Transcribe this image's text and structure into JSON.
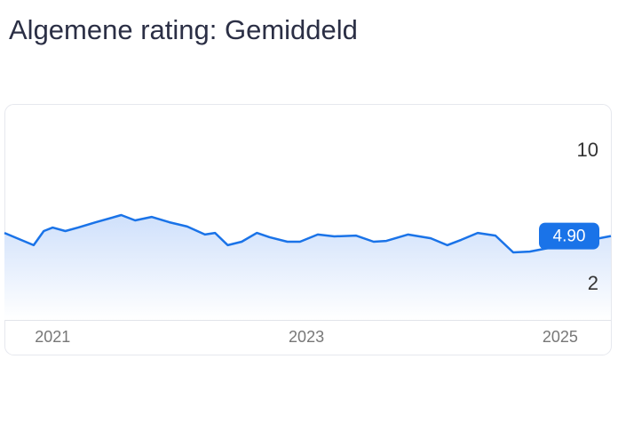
{
  "chart_data": {
    "type": "line",
    "title": "Algemene rating: Gemiddeld",
    "x": [
      2020.62,
      2020.72,
      2020.85,
      2020.93,
      2021.0,
      2021.1,
      2021.2,
      2021.34,
      2021.54,
      2021.65,
      2021.78,
      2021.92,
      2022.06,
      2022.2,
      2022.28,
      2022.38,
      2022.49,
      2022.61,
      2022.71,
      2022.85,
      2022.95,
      2023.09,
      2023.22,
      2023.39,
      2023.53,
      2023.63,
      2023.8,
      2023.98,
      2024.11,
      2024.22,
      2024.35,
      2024.49,
      2024.63,
      2024.76,
      2025.4
    ],
    "values": [
      5.09,
      4.77,
      4.35,
      5.2,
      5.41,
      5.2,
      5.41,
      5.73,
      6.16,
      5.84,
      6.05,
      5.73,
      5.47,
      4.99,
      5.09,
      4.35,
      4.56,
      5.09,
      4.83,
      4.56,
      4.56,
      4.99,
      4.88,
      4.93,
      4.56,
      4.61,
      4.99,
      4.77,
      4.35,
      4.67,
      5.09,
      4.93,
      3.92,
      3.97,
      4.9
    ],
    "color": "#1a73e8",
    "annotation": {
      "value": 4.9,
      "label": "4.90"
    },
    "xlim": [
      2020.62,
      2025.4
    ],
    "xticks": [
      2021,
      2023,
      2025
    ],
    "ylim": [
      0,
      12
    ],
    "yticks": [
      2,
      10
    ]
  }
}
